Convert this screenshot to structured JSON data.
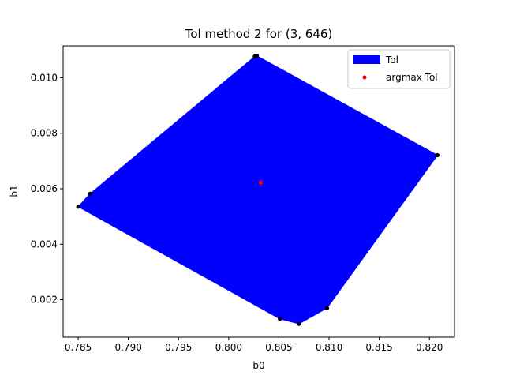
{
  "chart_data": {
    "type": "scatter",
    "title": "Tol method 2 for (3, 646)",
    "xlabel": "b0",
    "ylabel": "b1",
    "xlim": [
      0.7835,
      0.8225
    ],
    "ylim": [
      0.00065,
      0.01115
    ],
    "x_ticks": [
      "0.785",
      "0.790",
      "0.795",
      "0.800",
      "0.805",
      "0.810",
      "0.815",
      "0.820"
    ],
    "y_ticks": [
      "0.002",
      "0.004",
      "0.006",
      "0.008",
      "0.010"
    ],
    "grid": false,
    "legend_position": "top-right",
    "colors": {
      "polygon": "#0000ff",
      "vertices": "#000000",
      "argmax": "#ff0000"
    },
    "series": [
      {
        "name": "Tol",
        "kind": "polygon",
        "points": [
          [
            0.785,
            0.00535
          ],
          [
            0.7862,
            0.00582
          ],
          [
            0.8026,
            0.01077
          ],
          [
            0.8028,
            0.01079
          ],
          [
            0.8208,
            0.00721
          ],
          [
            0.8098,
            0.0017
          ],
          [
            0.807,
            0.00113
          ],
          [
            0.8051,
            0.00131
          ]
        ]
      },
      {
        "name": "argmax Tol",
        "kind": "point",
        "points": [
          [
            0.8032,
            0.00622
          ]
        ]
      }
    ]
  }
}
